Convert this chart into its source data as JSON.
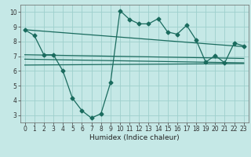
{
  "xlabel": "Humidex (Indice chaleur)",
  "bg_color": "#c5e8e6",
  "grid_color": "#9ecfcc",
  "line_color": "#1a6b5e",
  "xlim": [
    -0.5,
    23.5
  ],
  "ylim": [
    2.5,
    10.5
  ],
  "yticks": [
    3,
    4,
    5,
    6,
    7,
    8,
    9,
    10
  ],
  "xticks": [
    0,
    1,
    2,
    3,
    4,
    5,
    6,
    7,
    8,
    9,
    10,
    11,
    12,
    13,
    14,
    15,
    16,
    17,
    18,
    19,
    20,
    21,
    22,
    23
  ],
  "line1_x": [
    0,
    1,
    2,
    3,
    4,
    5,
    6,
    7,
    8,
    9,
    10,
    11,
    12,
    13,
    14,
    15,
    16,
    17,
    18,
    19,
    20,
    21,
    22,
    23
  ],
  "line1_y": [
    8.8,
    8.4,
    7.1,
    7.1,
    6.0,
    4.15,
    3.3,
    2.8,
    3.1,
    5.2,
    10.1,
    9.5,
    9.2,
    9.2,
    9.55,
    8.65,
    8.5,
    9.1,
    8.1,
    6.6,
    7.05,
    6.55,
    7.9,
    7.7
  ],
  "line2_x": [
    0,
    23
  ],
  "line2_y": [
    8.8,
    7.65
  ],
  "line3_x": [
    0,
    23
  ],
  "line3_y": [
    7.1,
    6.85
  ],
  "line4_x": [
    0,
    23
  ],
  "line4_y": [
    6.8,
    6.55
  ],
  "line5_x": [
    0,
    23
  ],
  "line5_y": [
    6.4,
    6.5
  ],
  "markersize": 2.5,
  "linewidth": 0.9,
  "tick_fontsize": 5.5,
  "xlabel_fontsize": 6.5
}
